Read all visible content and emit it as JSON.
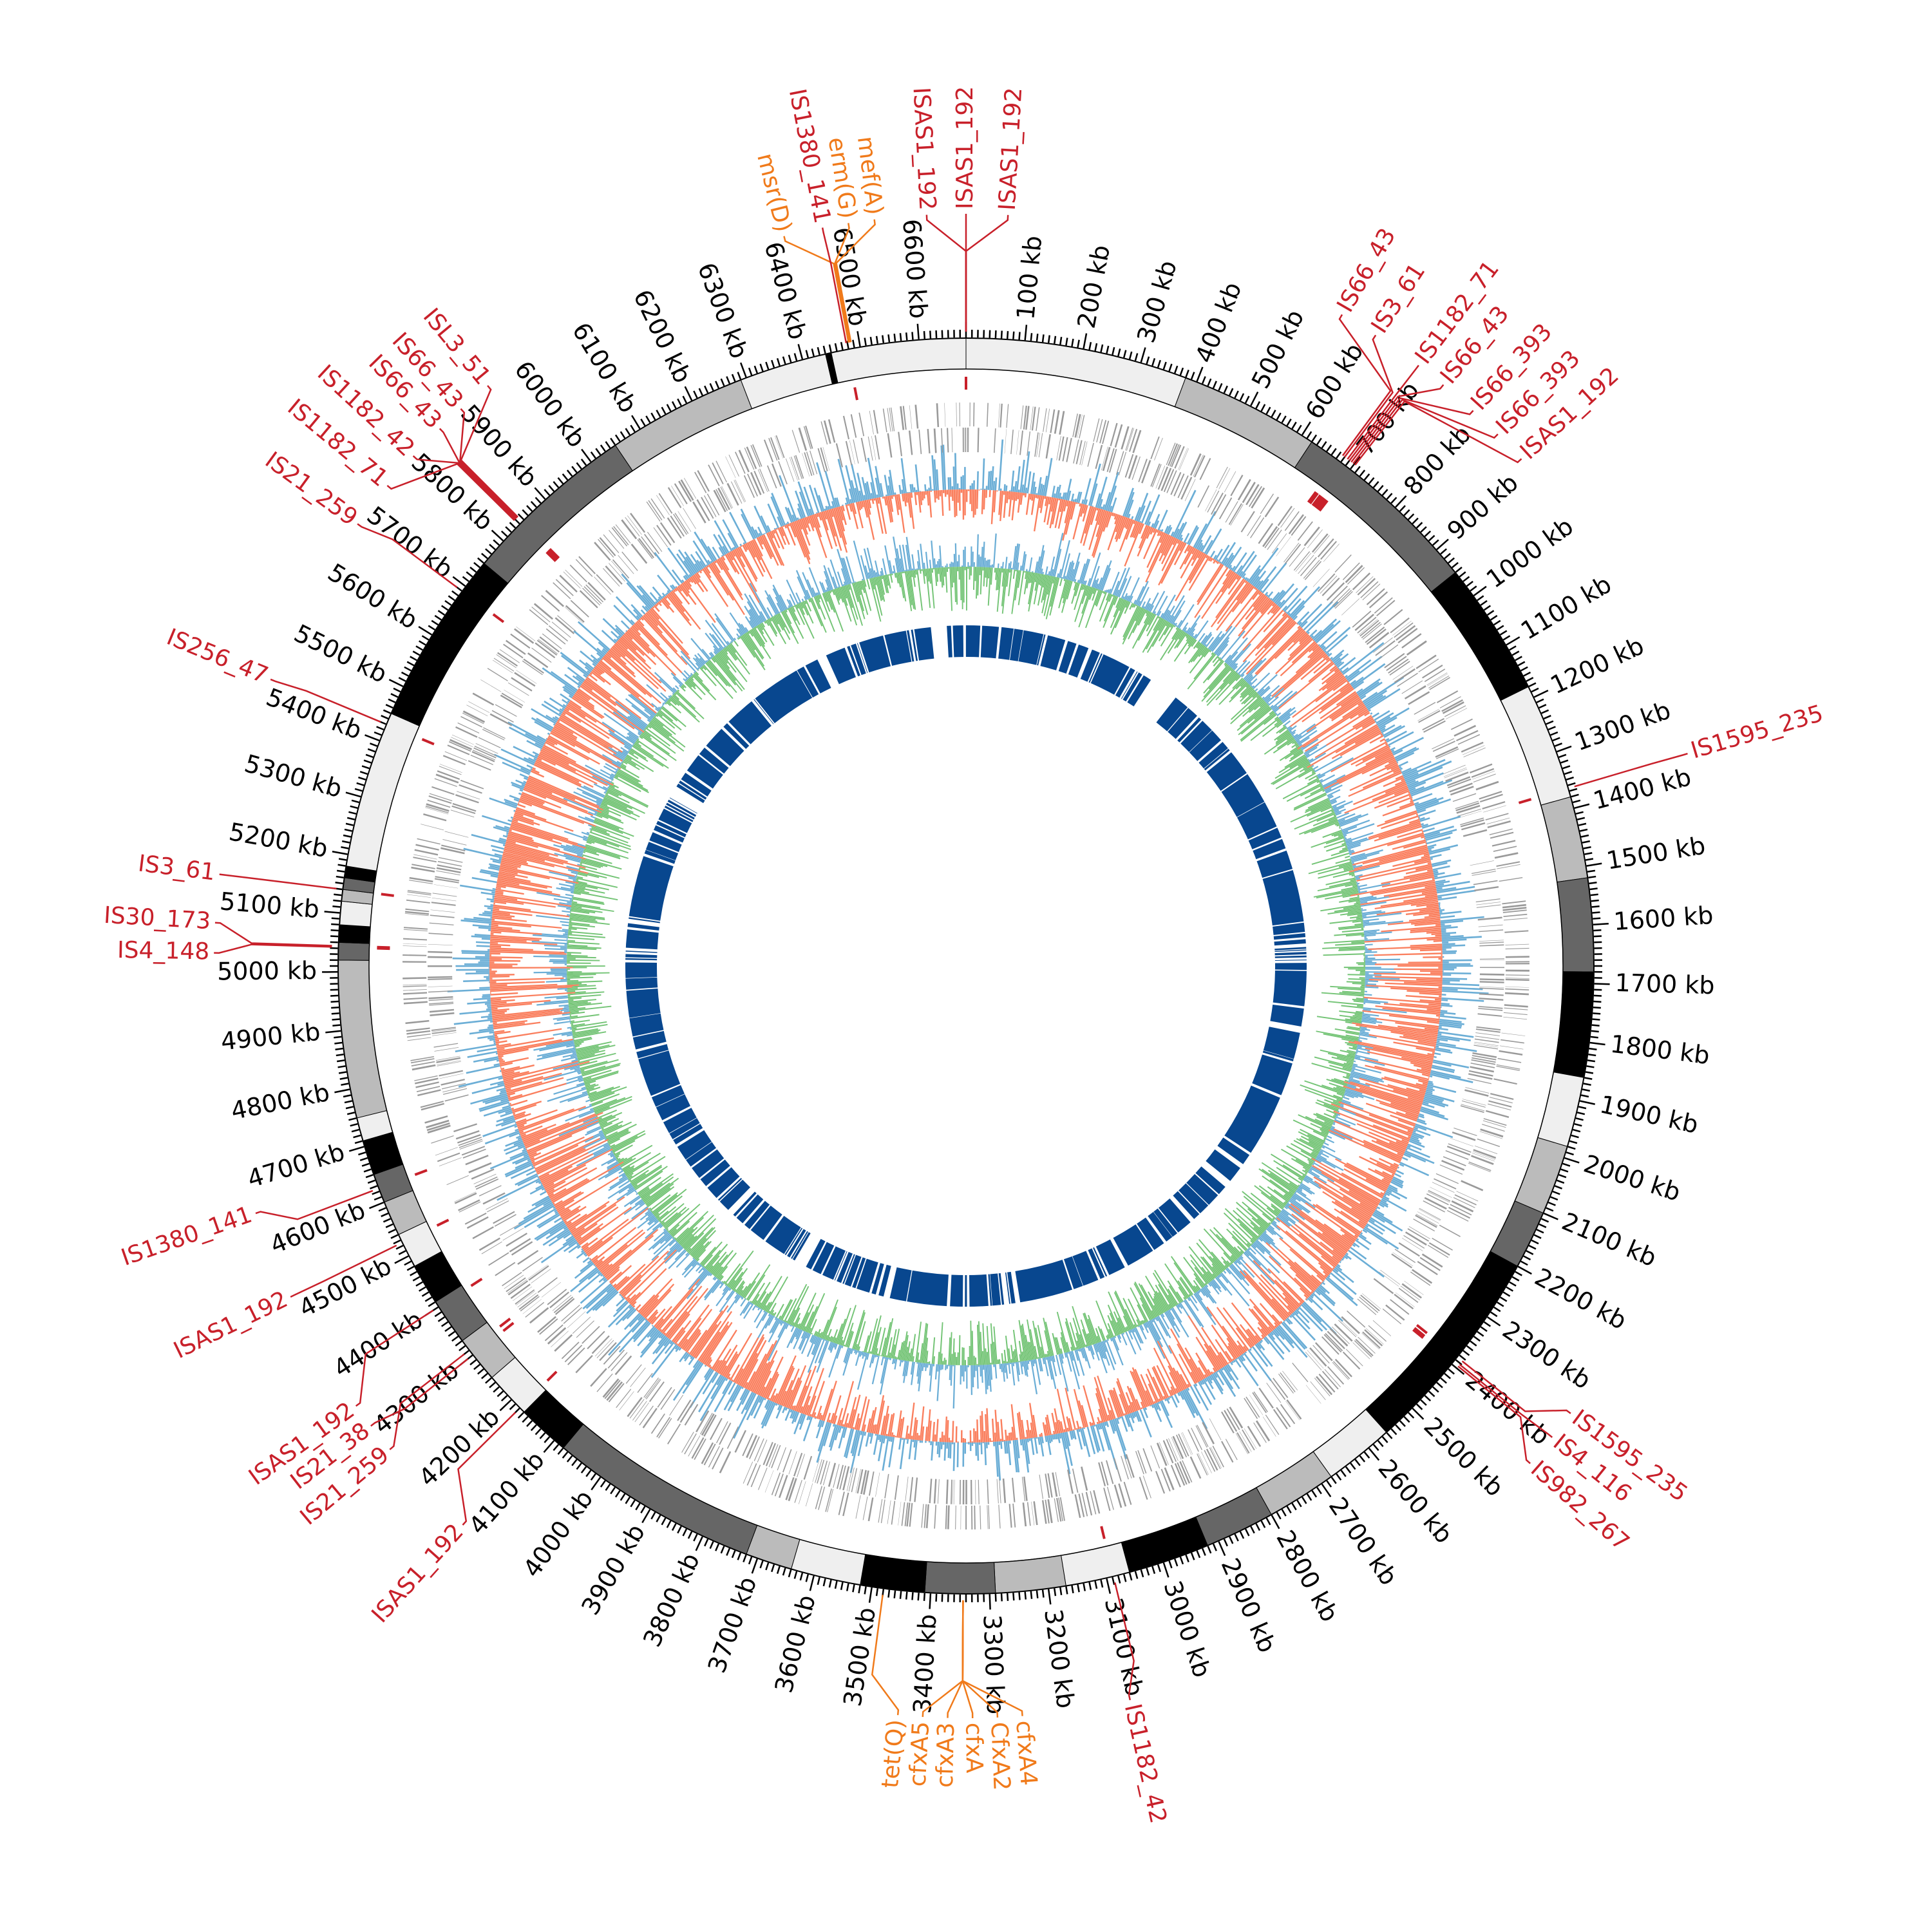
{
  "genome": {
    "total_kb": 6680,
    "tick_major_kb": 100,
    "tick_minor_kb": 10,
    "tick_unit": "kb"
  },
  "colors": {
    "is_element": "#c8202a",
    "resistance_gene": "#f07a1a",
    "band_light": "#efefef",
    "band_grey": "#bbbbbb",
    "band_dark": "#666666",
    "band_black": "#000000",
    "genes": "#9a9a9a",
    "skew_pos": "#fa7f5e",
    "skew_neg": "#6baed6",
    "gc_pos": "#74c476",
    "gc_neg": "#6baed6",
    "inner_ring": "#08478f"
  },
  "bands": [
    [
      0,
      380,
      "band_light"
    ],
    [
      380,
      620,
      "band_grey"
    ],
    [
      620,
      950,
      "band_dark"
    ],
    [
      950,
      1180,
      "band_black"
    ],
    [
      1180,
      1380,
      "band_light"
    ],
    [
      1380,
      1520,
      "band_grey"
    ],
    [
      1520,
      1680,
      "band_dark"
    ],
    [
      1680,
      1860,
      "band_black"
    ],
    [
      1860,
      1980,
      "band_light"
    ],
    [
      1980,
      2100,
      "band_grey"
    ],
    [
      2100,
      2200,
      "band_dark"
    ],
    [
      2200,
      2560,
      "band_black"
    ],
    [
      2560,
      2680,
      "band_light"
    ],
    [
      2680,
      2800,
      "band_grey"
    ],
    [
      2800,
      2920,
      "band_dark"
    ],
    [
      2920,
      3060,
      "band_black"
    ],
    [
      3060,
      3170,
      "band_light"
    ],
    [
      3170,
      3290,
      "band_grey"
    ],
    [
      3290,
      3410,
      "band_dark"
    ],
    [
      3410,
      3520,
      "band_black"
    ],
    [
      3520,
      3640,
      "band_light"
    ],
    [
      3640,
      3720,
      "band_grey"
    ],
    [
      3720,
      4080,
      "band_dark"
    ],
    [
      4080,
      4170,
      "band_black"
    ],
    [
      4170,
      4250,
      "band_light"
    ],
    [
      4250,
      4330,
      "band_grey"
    ],
    [
      4330,
      4410,
      "band_dark"
    ],
    [
      4410,
      4480,
      "band_black"
    ],
    [
      4480,
      4540,
      "band_light"
    ],
    [
      4540,
      4600,
      "band_grey"
    ],
    [
      4600,
      4650,
      "band_dark"
    ],
    [
      4650,
      4710,
      "band_black"
    ],
    [
      4710,
      4750,
      "band_light"
    ],
    [
      4750,
      5020,
      "band_grey"
    ],
    [
      5020,
      5050,
      "band_dark"
    ],
    [
      5050,
      5080,
      "band_black"
    ],
    [
      5080,
      5120,
      "band_light"
    ],
    [
      5120,
      5140,
      "band_grey"
    ],
    [
      5140,
      5160,
      "band_dark"
    ],
    [
      5160,
      5180,
      "band_black"
    ],
    [
      5180,
      5450,
      "band_light"
    ],
    [
      5450,
      5750,
      "band_black"
    ],
    [
      5750,
      6050,
      "band_dark"
    ],
    [
      6050,
      6290,
      "band_grey"
    ],
    [
      6290,
      6440,
      "band_light"
    ],
    [
      6440,
      6450,
      "band_black"
    ],
    [
      6450,
      6680,
      "band_light"
    ]
  ],
  "inner_ring_segments": [
    [
      0,
      610
    ],
    [
      705,
      1860
    ],
    [
      1880,
      2330
    ],
    [
      2345,
      2400
    ],
    [
      2420,
      2560
    ],
    [
      2575,
      3170
    ],
    [
      3185,
      3390
    ],
    [
      3400,
      3580
    ],
    [
      3600,
      3860
    ],
    [
      3900,
      4140
    ],
    [
      4160,
      5560
    ],
    [
      5600,
      6200
    ],
    [
      6230,
      6570
    ],
    [
      6620,
      6680
    ]
  ],
  "labels": [
    {
      "text": "ISAS1_192",
      "kb": 0,
      "type": "is_element"
    },
    {
      "text": "ISAS1_192",
      "kb": 0,
      "type": "is_element"
    },
    {
      "text": "ISAS1_192",
      "kb": 0,
      "type": "is_element"
    },
    {
      "text": "msr(D)",
      "kb": 6482,
      "type": "resistance_gene"
    },
    {
      "text": "IS1380_141",
      "kb": 6478,
      "type": "is_element"
    },
    {
      "text": "erm(G)",
      "kb": 6484,
      "type": "resistance_gene"
    },
    {
      "text": "mef(A)",
      "kb": 6486,
      "type": "resistance_gene"
    },
    {
      "text": "IS66_43",
      "kb": 676,
      "type": "is_element"
    },
    {
      "text": "IS3_61",
      "kb": 680,
      "type": "is_element"
    },
    {
      "text": "IS1182_71",
      "kb": 686,
      "type": "is_element"
    },
    {
      "text": "IS66_43",
      "kb": 690,
      "type": "is_element"
    },
    {
      "text": "IS66_393",
      "kb": 694,
      "type": "is_element"
    },
    {
      "text": "IS66_393",
      "kb": 698,
      "type": "is_element"
    },
    {
      "text": "ISAS1_192",
      "kb": 702,
      "type": "is_element"
    },
    {
      "text": "IS1595_235",
      "kb": 1365,
      "type": "is_element"
    },
    {
      "text": "IS1595_235",
      "kb": 2385,
      "type": "is_element"
    },
    {
      "text": "IS4_116",
      "kb": 2392,
      "type": "is_element"
    },
    {
      "text": "IS982_267",
      "kb": 2396,
      "type": "is_element"
    },
    {
      "text": "IS1182_42",
      "kb": 3088,
      "type": "is_element"
    },
    {
      "text": "tet(Q)",
      "kb": 3480,
      "type": "resistance_gene"
    },
    {
      "text": "cfxA5",
      "kb": 3345,
      "type": "resistance_gene"
    },
    {
      "text": "cfxA3",
      "kb": 3345,
      "type": "resistance_gene"
    },
    {
      "text": "cfxA",
      "kb": 3345,
      "type": "resistance_gene"
    },
    {
      "text": "CfxA2",
      "kb": 3345,
      "type": "resistance_gene"
    },
    {
      "text": "cfxA4",
      "kb": 3345,
      "type": "resistance_gene"
    },
    {
      "text": "ISAS1_192",
      "kb": 4180,
      "type": "is_element"
    },
    {
      "text": "IS21_259",
      "kb": 4310,
      "type": "is_element"
    },
    {
      "text": "IS21_38",
      "kb": 4300,
      "type": "is_element"
    },
    {
      "text": "ISAS1_192",
      "kb": 4400,
      "type": "is_element"
    },
    {
      "text": "ISAS1_192",
      "kb": 4525,
      "type": "is_element"
    },
    {
      "text": "IS1380_141",
      "kb": 4625,
      "type": "is_element"
    },
    {
      "text": "IS4_148",
      "kb": 5042,
      "type": "is_element"
    },
    {
      "text": "IS30_173",
      "kb": 5044,
      "type": "is_element"
    },
    {
      "text": "IS3_61",
      "kb": 5140,
      "type": "is_element"
    },
    {
      "text": "IS256_47",
      "kb": 5430,
      "type": "is_element"
    },
    {
      "text": "IS21_259",
      "kb": 5690,
      "type": "is_element"
    },
    {
      "text": "IS1182_71",
      "kb": 5838,
      "type": "is_element"
    },
    {
      "text": "IS1182_42",
      "kb": 5840,
      "type": "is_element"
    },
    {
      "text": "IS66_43",
      "kb": 5842,
      "type": "is_element"
    },
    {
      "text": "IS66_43",
      "kb": 5844,
      "type": "is_element"
    },
    {
      "text": "ISL3_51",
      "kb": 5846,
      "type": "is_element"
    }
  ]
}
